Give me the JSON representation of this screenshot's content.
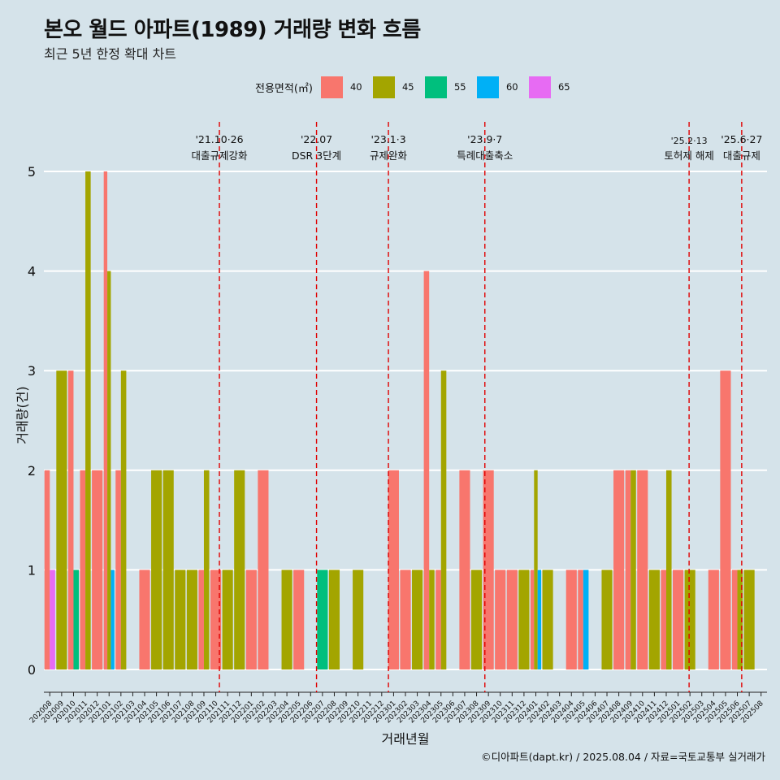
{
  "title": "본오 월드 아파트(1989) 거래량 변화 흐름",
  "subtitle": "최근 5년 한정 확대 차트",
  "caption": "©디아파트(dapt.kr) / 2025.08.04 / 자료=국토교통부 실거래가",
  "legend": {
    "title": "전용면적(㎡)",
    "items": [
      {
        "label": "40",
        "color": "#F8766D"
      },
      {
        "label": "45",
        "color": "#A3A500"
      },
      {
        "label": "55",
        "color": "#00BF7D"
      },
      {
        "label": "60",
        "color": "#00B0F6"
      },
      {
        "label": "65",
        "color": "#E76BF3"
      }
    ]
  },
  "chart_data": {
    "type": "bar",
    "title": "본오 월드 아파트(1989) 거래량 변화 흐름",
    "subtitle": "최근 5년 한정 확대 차트",
    "xlabel": "거래년월",
    "ylabel": "거래량(건)",
    "ylim": [
      0,
      5
    ],
    "yticks": [
      0,
      1,
      2,
      3,
      4,
      5
    ],
    "grid": true,
    "legend_position": "top",
    "categories": [
      "202008",
      "202009",
      "202010",
      "202011",
      "202012",
      "202101",
      "202102",
      "202103",
      "202104",
      "202105",
      "202106",
      "202107",
      "202108",
      "202109",
      "202110",
      "202111",
      "202112",
      "202201",
      "202202",
      "202203",
      "202204",
      "202205",
      "202206",
      "202207",
      "202208",
      "202209",
      "202210",
      "202211",
      "202212",
      "202301",
      "202302",
      "202303",
      "202304",
      "202305",
      "202306",
      "202307",
      "202308",
      "202309",
      "202310",
      "202311",
      "202312",
      "202401",
      "202402",
      "202403",
      "202404",
      "202405",
      "202406",
      "202407",
      "202408",
      "202409",
      "202410",
      "202411",
      "202412",
      "202501",
      "202502",
      "202503",
      "202504",
      "202505",
      "202506",
      "202507",
      "202508"
    ],
    "series": [
      {
        "name": "40",
        "color": "#F8766D",
        "values": [
          2,
          0,
          3,
          2,
          2,
          5,
          2,
          0,
          1,
          0,
          0,
          0,
          0,
          1,
          1,
          0,
          0,
          1,
          2,
          0,
          0,
          1,
          0,
          0,
          0,
          0,
          0,
          0,
          0,
          2,
          1,
          0,
          4,
          1,
          0,
          2,
          0,
          2,
          1,
          1,
          0,
          1,
          0,
          0,
          1,
          1,
          0,
          0,
          2,
          2,
          2,
          0,
          1,
          1,
          0,
          0,
          1,
          3,
          1,
          0,
          0
        ]
      },
      {
        "name": "45",
        "color": "#A3A500",
        "values": [
          0,
          3,
          0,
          5,
          0,
          4,
          3,
          0,
          0,
          2,
          2,
          1,
          1,
          2,
          0,
          1,
          2,
          0,
          0,
          0,
          1,
          0,
          0,
          0,
          1,
          0,
          1,
          0,
          0,
          0,
          0,
          1,
          1,
          3,
          0,
          0,
          1,
          0,
          0,
          0,
          1,
          2,
          1,
          0,
          0,
          0,
          0,
          1,
          0,
          2,
          0,
          1,
          2,
          0,
          1,
          0,
          0,
          0,
          1,
          1,
          0
        ]
      },
      {
        "name": "55",
        "color": "#00BF7D",
        "values": [
          0,
          0,
          1,
          0,
          0,
          0,
          0,
          0,
          0,
          0,
          0,
          0,
          0,
          0,
          0,
          0,
          0,
          0,
          0,
          0,
          0,
          0,
          0,
          1,
          0,
          0,
          0,
          0,
          0,
          0,
          0,
          0,
          0,
          0,
          0,
          0,
          0,
          0,
          0,
          0,
          0,
          0,
          0,
          0,
          0,
          0,
          0,
          0,
          0,
          0,
          0,
          0,
          0,
          0,
          0,
          0,
          0,
          0,
          0,
          0,
          0
        ]
      },
      {
        "name": "60",
        "color": "#00B0F6",
        "values": [
          0,
          0,
          0,
          0,
          0,
          1,
          0,
          0,
          0,
          0,
          0,
          0,
          0,
          0,
          0,
          0,
          0,
          0,
          0,
          0,
          0,
          0,
          0,
          0,
          0,
          0,
          0,
          0,
          0,
          0,
          0,
          0,
          0,
          0,
          0,
          0,
          0,
          0,
          0,
          0,
          0,
          1,
          0,
          0,
          0,
          1,
          0,
          0,
          0,
          0,
          0,
          0,
          0,
          0,
          0,
          0,
          0,
          0,
          0,
          0,
          0
        ]
      },
      {
        "name": "65",
        "color": "#E76BF3",
        "values": [
          1,
          0,
          0,
          0,
          0,
          0,
          0,
          0,
          0,
          0,
          0,
          0,
          0,
          0,
          0,
          0,
          0,
          0,
          0,
          0,
          0,
          0,
          0,
          0,
          0,
          0,
          0,
          0,
          0,
          0,
          0,
          0,
          0,
          0,
          0,
          0,
          0,
          0,
          0,
          0,
          0,
          0,
          0,
          0,
          0,
          0,
          0,
          0,
          0,
          0,
          0,
          0,
          0,
          0,
          0,
          0,
          0,
          0,
          0,
          0,
          0
        ]
      }
    ],
    "events": [
      {
        "x": "2021-10-26",
        "date_label": "'21.10·26",
        "label": "대출규제강화"
      },
      {
        "x": "2022-07-01",
        "date_label": "'22.07",
        "label": "DSR 3단계"
      },
      {
        "x": "2023-01-03",
        "date_label": "'23.1·3",
        "label": "규제완화"
      },
      {
        "x": "2023-09-07",
        "date_label": "'23.9·7",
        "label": "특례대출축소"
      },
      {
        "x": "2025-02-13",
        "date_label": "'25.2·13",
        "label": "토허제 해제"
      },
      {
        "x": "2025-06-27",
        "date_label": "'25.6·27",
        "label": "대출규제"
      }
    ]
  }
}
